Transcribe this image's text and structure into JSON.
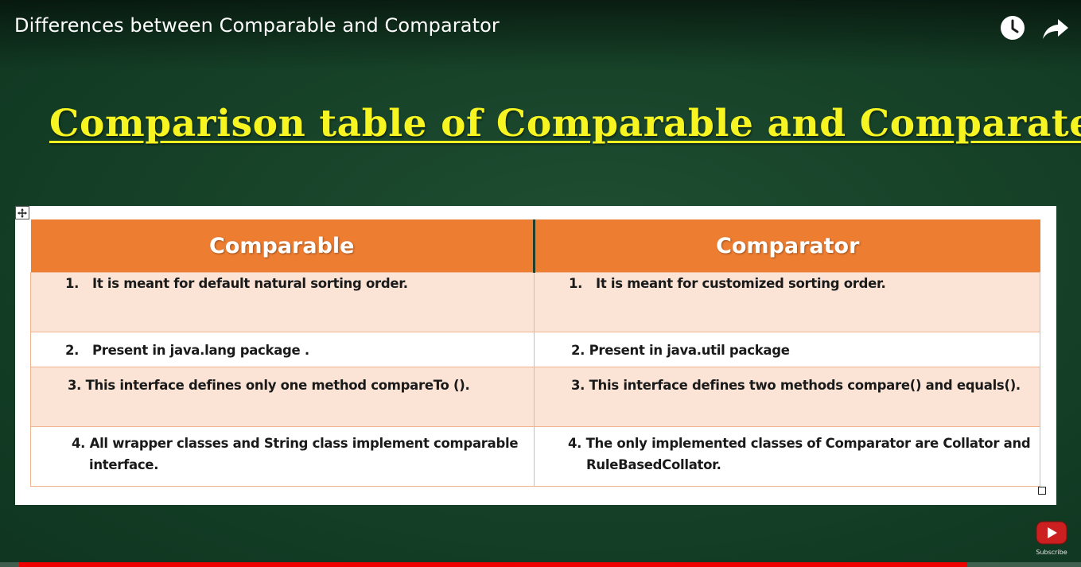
{
  "video": {
    "title": "Differences between Comparable and Comparator",
    "progress_fraction": 0.893
  },
  "controls": {
    "watch_later_icon": "clock-icon",
    "share_icon": "share-arrow-icon",
    "subscribe_label": "Subscribe"
  },
  "slide": {
    "heading": "Comparison table of Comparable and Comparater",
    "table": {
      "headers": [
        "Comparable",
        "Comparator"
      ],
      "rows": [
        {
          "left_num": "1.",
          "left": "It is meant for default natural sorting order.",
          "right_num": "1.",
          "right": "It is meant for customized sorting order."
        },
        {
          "left_num": "2.",
          "left": "Present in java.lang package .",
          "right": "2. Present in java.util package"
        },
        {
          "left": "3. This interface defines only one method compareTo ().",
          "right": "3. This interface defines two methods compare() and equals()."
        },
        {
          "left_line1": "4. All wrapper classes and String class implement comparable",
          "left_line2": "interface.",
          "right_line1": "4. The only implemented classes of Comparator are Collator and",
          "right_line2": "RuleBasedCollator."
        }
      ]
    }
  },
  "colors": {
    "background": "#174329",
    "heading": "#f6f421",
    "header_fill": "#ed7d31",
    "row_shade": "#fbe4d5",
    "progress": "#ee0000"
  }
}
